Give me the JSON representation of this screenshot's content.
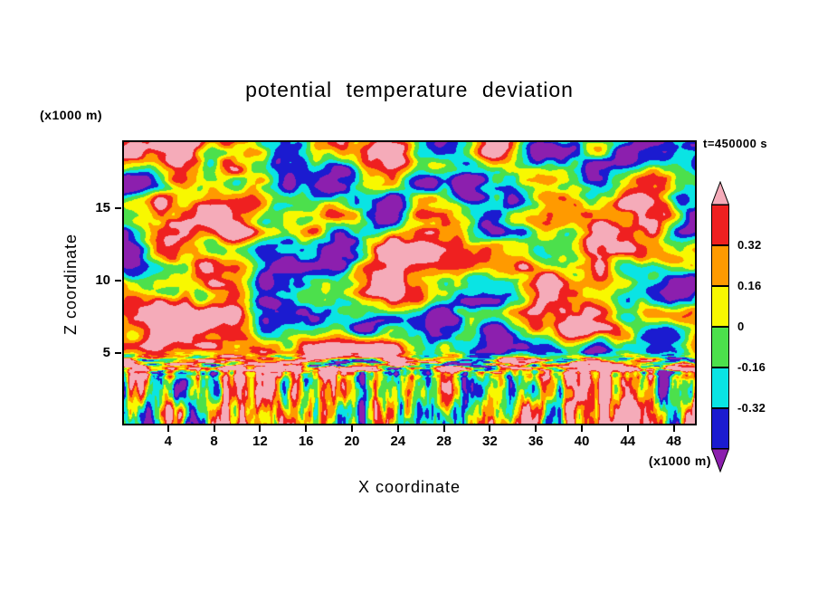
{
  "title": "potential temperature deviation",
  "annotations": {
    "time": "t=450000 s",
    "y_axis_unit": "(x1000 m)",
    "x_axis_unit": "(x1000 m)"
  },
  "axes": {
    "x_label": "X coordinate",
    "y_label": "Z coordinate",
    "x_ticks": [
      4,
      8,
      12,
      16,
      20,
      24,
      28,
      32,
      36,
      40,
      44,
      48
    ],
    "y_ticks": [
      5,
      10,
      15
    ],
    "x_range": [
      0,
      50
    ],
    "y_range": [
      0,
      19.7
    ]
  },
  "colorbar": {
    "tick_labels": [
      "0.32",
      "0.16",
      "0",
      "-0.16",
      "-0.32"
    ],
    "orientation": "vertical",
    "arrow_ends": true
  },
  "chart_data": {
    "type": "heatmap",
    "title": "potential temperature deviation",
    "xlabel": "X coordinate (x1000 m)",
    "ylabel": "Z coordinate (x1000 m)",
    "time": "t=450000 s",
    "x_range": [
      0,
      50
    ],
    "y_range": [
      0,
      19.7
    ],
    "x_ticks": [
      4,
      8,
      12,
      16,
      20,
      24,
      28,
      32,
      36,
      40,
      44,
      48
    ],
    "y_ticks": [
      5,
      10,
      15
    ],
    "levels": [
      -0.48,
      -0.32,
      -0.16,
      0,
      0.16,
      0.32,
      0.48
    ],
    "band_colors_low_to_high": [
      "#8c1fae",
      "#1b1bd0",
      "#0ae4e4",
      "#4ce04c",
      "#f8f800",
      "#ff9a00",
      "#ef2020",
      "#f5abb9"
    ],
    "colorbar_labels": [
      "0.32",
      "0.16",
      "0",
      "-0.16",
      "-0.32"
    ],
    "legend_position": "right",
    "grid": false,
    "field": {
      "seed": 20,
      "top": {
        "scale_x": 4.6,
        "scale_z": 2.4,
        "amp": 1.5,
        "z_start": 4.1,
        "z_full": 5.4
      },
      "layer": {
        "z_center": 4.2,
        "z_width": 0.6,
        "scale_x": 2.4,
        "scale_z": 0.3,
        "amp": 2.0,
        "bias": 0.3
      },
      "bottom": {
        "scale_x": 1.0,
        "scale_z": 2.8,
        "amp": 1.15,
        "bias": -0.06,
        "plume_scale_x": 1.6,
        "plume_amp": 1.5,
        "z_full": 3.6,
        "z_end": 4.5
      }
    }
  }
}
